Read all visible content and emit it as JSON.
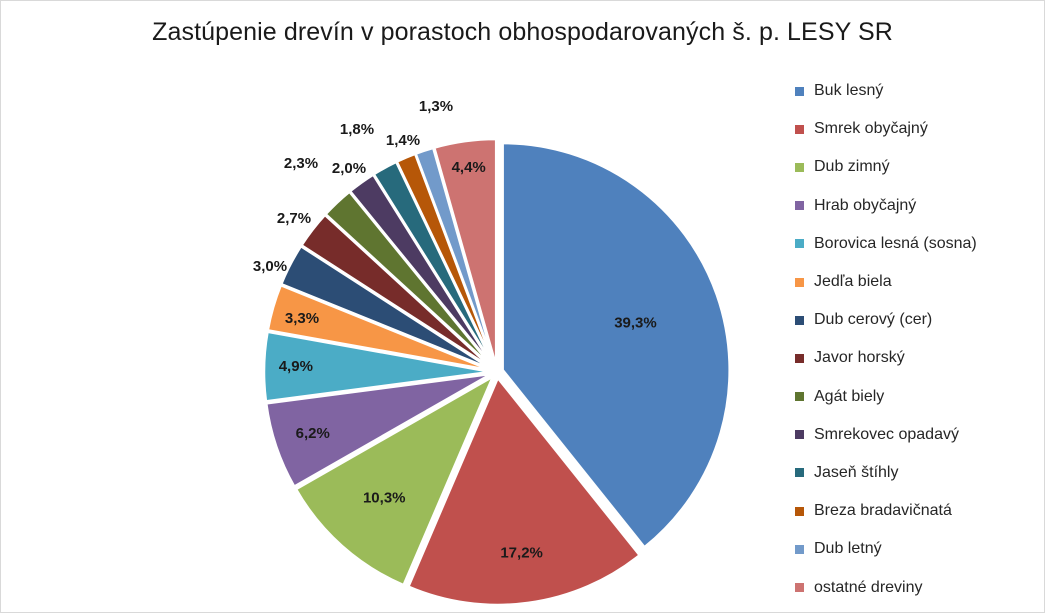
{
  "chart_data": {
    "type": "pie",
    "title": "Zastúpenie drevín v porastoch obhospodarovaných š. p. LESY SR",
    "legend_position": "right",
    "exploded": true,
    "slices": [
      {
        "name": "Buk lesný",
        "value": 39.3,
        "label": "39,3%",
        "color": "#4f81bd"
      },
      {
        "name": "Smrek obyčajný",
        "value": 17.2,
        "label": "17,2%",
        "color": "#c0504d"
      },
      {
        "name": "Dub zimný",
        "value": 10.3,
        "label": "10,3%",
        "color": "#9bbb59"
      },
      {
        "name": "Hrab obyčajný",
        "value": 6.2,
        "label": "6,2%",
        "color": "#8064a2"
      },
      {
        "name": "Borovica lesná (sosna)",
        "value": 4.9,
        "label": "4,9%",
        "color": "#4bacc6"
      },
      {
        "name": "Jedľa biela",
        "value": 3.3,
        "label": "3,3%",
        "color": "#f79646"
      },
      {
        "name": "Dub cerový (cer)",
        "value": 3.0,
        "label": "3,0%",
        "color": "#2c4d75"
      },
      {
        "name": "Javor horský",
        "value": 2.7,
        "label": "2,7%",
        "color": "#772c2a"
      },
      {
        "name": "Agát biely",
        "value": 2.3,
        "label": "2,3%",
        "color": "#5f7530"
      },
      {
        "name": "Smrekovec opadavý",
        "value": 2.0,
        "label": "2,0%",
        "color": "#4d3b62"
      },
      {
        "name": "Jaseň štíhly",
        "value": 1.8,
        "label": "1,8%",
        "color": "#276a7c"
      },
      {
        "name": "Breza bradavičnatá",
        "value": 1.4,
        "label": "1,4%",
        "color": "#b65708"
      },
      {
        "name": "Dub letný",
        "value": 1.3,
        "label": "1,3%",
        "color": "#729aca"
      },
      {
        "name": "ostatné dreviny",
        "value": 4.4,
        "label": "4,4%",
        "color": "#cd7371"
      }
    ]
  }
}
